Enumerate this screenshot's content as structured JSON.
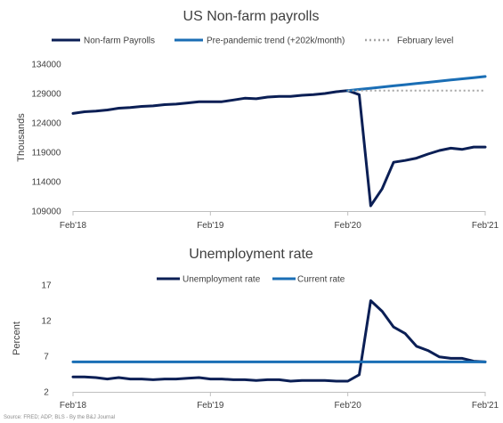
{
  "chart_data": [
    {
      "type": "line",
      "title": "US Non-farm payrolls",
      "ylabel": "Thousands",
      "ylim": [
        109000,
        134000
      ],
      "yticks": [
        109000,
        114000,
        119000,
        124000,
        129000,
        134000
      ],
      "xticks": [
        "Feb'18",
        "Feb'19",
        "Feb'20",
        "Feb'21"
      ],
      "x": [
        "2018-02",
        "2018-03",
        "2018-04",
        "2018-05",
        "2018-06",
        "2018-07",
        "2018-08",
        "2018-09",
        "2018-10",
        "2018-11",
        "2018-12",
        "2019-01",
        "2019-02",
        "2019-03",
        "2019-04",
        "2019-05",
        "2019-06",
        "2019-07",
        "2019-08",
        "2019-09",
        "2019-10",
        "2019-11",
        "2019-12",
        "2020-01",
        "2020-02",
        "2020-03",
        "2020-04",
        "2020-05",
        "2020-06",
        "2020-07",
        "2020-08",
        "2020-09",
        "2020-10",
        "2020-11",
        "2020-12",
        "2021-01",
        "2021-02"
      ],
      "grid": false,
      "legend_position": "top",
      "series": [
        {
          "name": "Non-farm Payrolls",
          "color": "#0b1f55",
          "style": "solid",
          "values": [
            125600,
            125900,
            126000,
            126200,
            126500,
            126600,
            126800,
            126900,
            127100,
            127200,
            127400,
            127600,
            127600,
            127600,
            127900,
            128200,
            128100,
            128400,
            128500,
            128500,
            128700,
            128800,
            129000,
            129300,
            129500,
            128800,
            109900,
            112800,
            117300,
            117600,
            118000,
            118700,
            119300,
            119700,
            119500,
            119900,
            119900
          ]
        },
        {
          "name": "Pre-pandemic trend (+202k/month)",
          "color": "#1a6eb5",
          "style": "solid",
          "x": [
            "2020-02",
            "2020-03",
            "2020-04",
            "2020-05",
            "2020-06",
            "2020-07",
            "2020-08",
            "2020-09",
            "2020-10",
            "2020-11",
            "2020-12",
            "2021-01",
            "2021-02"
          ],
          "values": [
            129500,
            129700,
            129900,
            130100,
            130300,
            130500,
            130700,
            130900,
            131100,
            131300,
            131500,
            131700,
            131900
          ]
        },
        {
          "name": "February level",
          "color": "#a6a6a6",
          "style": "dotted",
          "x": [
            "2020-02",
            "2021-02"
          ],
          "values": [
            129500,
            129500
          ]
        }
      ]
    },
    {
      "type": "line",
      "title": "Unemployment rate",
      "ylabel": "Percent",
      "ylim": [
        2,
        17
      ],
      "yticks": [
        2,
        7,
        12,
        17
      ],
      "xticks": [
        "Feb'18",
        "Feb'19",
        "Feb'20",
        "Feb'21"
      ],
      "x": [
        "2018-02",
        "2018-03",
        "2018-04",
        "2018-05",
        "2018-06",
        "2018-07",
        "2018-08",
        "2018-09",
        "2018-10",
        "2018-11",
        "2018-12",
        "2019-01",
        "2019-02",
        "2019-03",
        "2019-04",
        "2019-05",
        "2019-06",
        "2019-07",
        "2019-08",
        "2019-09",
        "2019-10",
        "2019-11",
        "2019-12",
        "2020-01",
        "2020-02",
        "2020-03",
        "2020-04",
        "2020-05",
        "2020-06",
        "2020-07",
        "2020-08",
        "2020-09",
        "2020-10",
        "2020-11",
        "2020-12",
        "2021-01",
        "2021-02"
      ],
      "grid": false,
      "legend_position": "top",
      "series": [
        {
          "name": "Unemployment rate",
          "color": "#0b1f55",
          "style": "solid",
          "values": [
            4.1,
            4.1,
            4.0,
            3.8,
            4.0,
            3.8,
            3.8,
            3.7,
            3.8,
            3.8,
            3.9,
            4.0,
            3.8,
            3.8,
            3.7,
            3.7,
            3.6,
            3.7,
            3.7,
            3.5,
            3.6,
            3.6,
            3.6,
            3.5,
            3.5,
            4.4,
            14.8,
            13.3,
            11.1,
            10.2,
            8.4,
            7.8,
            6.9,
            6.7,
            6.7,
            6.3,
            6.2
          ]
        },
        {
          "name": "Current rate",
          "color": "#1a6eb5",
          "style": "solid",
          "x": [
            "2018-02",
            "2021-02"
          ],
          "values": [
            6.2,
            6.2
          ]
        }
      ]
    }
  ],
  "source": "Source: FRED; ADP; BLS - By the B&J Journal"
}
